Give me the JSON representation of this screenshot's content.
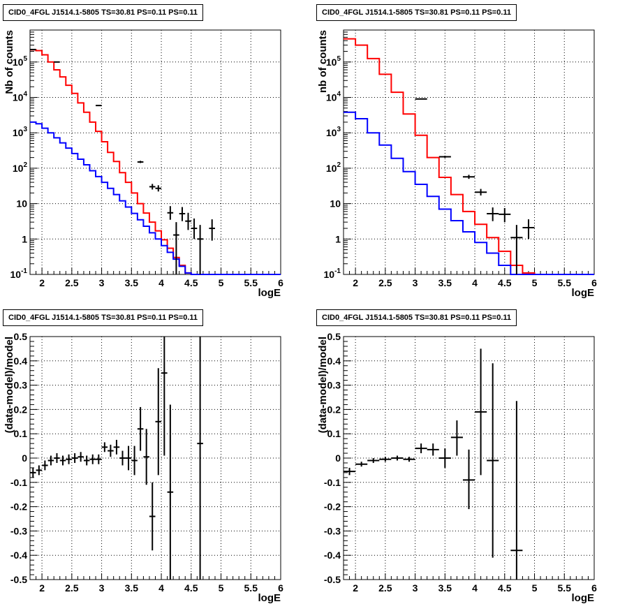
{
  "chart_data": [
    {
      "type": "line",
      "title": "CID0_4FGL J1514.1-5805 TS=30.81 PS=0.11 PS=0.11",
      "xlabel": "logE",
      "ylabel": "Nb of counts",
      "xlim": [
        1.8,
        6
      ],
      "ylim": [
        0.1,
        800000
      ],
      "yscale": "log",
      "grid": true,
      "x_ticks": [
        "2",
        "2.5",
        "3",
        "3.5",
        "4",
        "4.5",
        "5",
        "5.5",
        "6"
      ],
      "y_ticks": [
        {
          "v": 0.1,
          "base": "10",
          "exp": "-1"
        },
        {
          "v": 1,
          "text": "1"
        },
        {
          "v": 10,
          "text": "10"
        },
        {
          "v": 100,
          "base": "10",
          "exp": "2"
        },
        {
          "v": 1000,
          "base": "10",
          "exp": "3"
        },
        {
          "v": 10000,
          "base": "10",
          "exp": "4"
        },
        {
          "v": 100000,
          "base": "10",
          "exp": "5"
        }
      ],
      "bin_edges": [
        1.8,
        1.9,
        2.0,
        2.1,
        2.2,
        2.3,
        2.4,
        2.5,
        2.6,
        2.7,
        2.8,
        2.9,
        3.0,
        3.1,
        3.2,
        3.3,
        3.4,
        3.5,
        3.6,
        3.7,
        3.8,
        3.9,
        4.0,
        4.1,
        4.2,
        4.3,
        4.4,
        4.5,
        4.6,
        4.7,
        4.8,
        4.9,
        5.0,
        5.1,
        5.2,
        5.3,
        5.4,
        5.5,
        5.6,
        5.7,
        5.8,
        5.9,
        6.0
      ],
      "series": [
        {
          "color": "#ff0000",
          "style": "step",
          "values": [
            220000,
            210000,
            160000,
            100000,
            60000,
            38000,
            22000,
            13000,
            7000,
            3800,
            2000,
            1100,
            560,
            280,
            155,
            75,
            40,
            20,
            10,
            5.4,
            3.0,
            1.7,
            0.95,
            0.55,
            0.3,
            0.18,
            0.11,
            0.1,
            0.1,
            0.1,
            0.1,
            0.1,
            0.1,
            0.1,
            0.1,
            0.1,
            0.1,
            0.1,
            0.1,
            0.1,
            0.1,
            0.1
          ]
        },
        {
          "color": "#0000ff",
          "style": "step",
          "values": [
            2000,
            1800,
            1350,
            1000,
            720,
            520,
            370,
            260,
            180,
            125,
            85,
            58,
            40,
            27,
            18,
            12,
            8,
            5.3,
            3.5,
            2.3,
            1.5,
            1.0,
            0.65,
            0.42,
            0.27,
            0.17,
            0.11,
            0.1,
            0.1,
            0.1,
            0.1,
            0.1,
            0.1,
            0.1,
            0.1,
            0.1,
            0.1,
            0.1,
            0.1,
            0.1,
            0.1,
            0.1
          ]
        },
        {
          "color": "#000000",
          "style": "errorbar",
          "points": [
            {
              "x": 1.85,
              "y": 225000,
              "xe": 0.05,
              "lo": 224000,
              "hi": 226000
            },
            {
              "x": 2.25,
              "y": 100000,
              "xe": 0.05,
              "lo": 99000,
              "hi": 101000
            },
            {
              "x": 2.95,
              "y": 5900,
              "xe": 0.05,
              "lo": 5800,
              "hi": 6000
            },
            {
              "x": 3.65,
              "y": 150,
              "xe": 0.05,
              "lo": 140,
              "hi": 162
            },
            {
              "x": 3.85,
              "y": 30,
              "xe": 0.05,
              "lo": 25,
              "hi": 36
            },
            {
              "x": 3.95,
              "y": 27,
              "xe": 0.05,
              "lo": 22,
              "hi": 33
            },
            {
              "x": 4.15,
              "y": 5.5,
              "xe": 0.05,
              "lo": 3.5,
              "hi": 8.5
            },
            {
              "x": 4.25,
              "y": 1.3,
              "xe": 0.05,
              "lo": 0.1,
              "hi": 3.0
            },
            {
              "x": 4.35,
              "y": 5.2,
              "xe": 0.05,
              "lo": 3.2,
              "hi": 8.0
            },
            {
              "x": 4.45,
              "y": 3.2,
              "xe": 0.05,
              "lo": 1.8,
              "hi": 5.5
            },
            {
              "x": 4.55,
              "y": 2.0,
              "xe": 0.05,
              "lo": 1.0,
              "hi": 3.8
            },
            {
              "x": 4.65,
              "y": 1.0,
              "xe": 0.05,
              "lo": 0.1,
              "hi": 2.5
            },
            {
              "x": 4.85,
              "y": 2.0,
              "xe": 0.05,
              "lo": 0.9,
              "hi": 3.6
            }
          ]
        }
      ]
    },
    {
      "type": "line",
      "title": "CID0_4FGL J1514.1-5805 TS=30.81 PS=0.11 PS=0.11",
      "xlabel": "logE",
      "ylabel": "nb of counts",
      "xlim": [
        1.8,
        6
      ],
      "ylim": [
        0.1,
        800000
      ],
      "yscale": "log",
      "grid": true,
      "x_ticks": [
        "2",
        "2.5",
        "3",
        "3.5",
        "4",
        "4.5",
        "5",
        "5.5",
        "6"
      ],
      "y_ticks": [
        {
          "v": 0.1,
          "base": "10",
          "exp": "-1"
        },
        {
          "v": 1,
          "text": "1"
        },
        {
          "v": 10,
          "text": "10"
        },
        {
          "v": 100,
          "base": "10",
          "exp": "2"
        },
        {
          "v": 1000,
          "base": "10",
          "exp": "3"
        },
        {
          "v": 10000,
          "base": "10",
          "exp": "4"
        },
        {
          "v": 100000,
          "base": "10",
          "exp": "5"
        }
      ],
      "bin_edges": [
        1.8,
        2.0,
        2.2,
        2.4,
        2.6,
        2.8,
        3.0,
        3.2,
        3.4,
        3.6,
        3.8,
        4.0,
        4.2,
        4.4,
        4.6,
        4.8,
        5.0,
        5.2,
        5.4,
        5.6,
        5.8,
        6.0
      ],
      "series": [
        {
          "color": "#ff0000",
          "style": "step",
          "values": [
            450000,
            300000,
            125000,
            45000,
            14000,
            3400,
            850,
            200,
            55,
            18,
            6,
            2.6,
            1.1,
            0.45,
            0.18,
            0.11,
            0.1,
            0.1,
            0.1,
            0.1,
            0.1
          ]
        },
        {
          "color": "#0000ff",
          "style": "step",
          "values": [
            3800,
            2500,
            1000,
            450,
            190,
            80,
            35,
            16,
            7,
            3.3,
            1.6,
            0.8,
            0.4,
            0.18,
            0.1,
            0.1,
            0.1,
            0.1,
            0.1,
            0.1,
            0.1
          ]
        },
        {
          "color": "#000000",
          "style": "errorbar",
          "points": [
            {
              "x": 3.1,
              "y": 9000,
              "xe": 0.1,
              "lo": 8800,
              "hi": 9200
            },
            {
              "x": 3.5,
              "y": 210,
              "xe": 0.1,
              "lo": 195,
              "hi": 225
            },
            {
              "x": 3.9,
              "y": 57,
              "xe": 0.1,
              "lo": 50,
              "hi": 65
            },
            {
              "x": 4.1,
              "y": 21,
              "xe": 0.1,
              "lo": 17,
              "hi": 26
            },
            {
              "x": 4.3,
              "y": 5.2,
              "xe": 0.1,
              "lo": 3.2,
              "hi": 7.8
            },
            {
              "x": 4.5,
              "y": 5.0,
              "xe": 0.1,
              "lo": 3.0,
              "hi": 7.5
            },
            {
              "x": 4.7,
              "y": 1.1,
              "xe": 0.1,
              "lo": 0.1,
              "hi": 2.5
            },
            {
              "x": 4.9,
              "y": 2.1,
              "xe": 0.1,
              "lo": 1.0,
              "hi": 3.6
            }
          ]
        }
      ]
    },
    {
      "type": "scatter",
      "title": "CID0_4FGL J1514.1-5805 TS=30.81 PS=0.11 PS=0.11",
      "xlabel": "logE",
      "ylabel": "(data-model)/model",
      "xlim": [
        1.8,
        6
      ],
      "ylim": [
        -0.5,
        0.5
      ],
      "yscale": "linear",
      "grid": true,
      "x_ticks": [
        "2",
        "2.5",
        "3",
        "3.5",
        "4",
        "4.5",
        "5",
        "5.5",
        "6"
      ],
      "y_ticks": [
        {
          "v": -0.5,
          "text": "-0.5"
        },
        {
          "v": -0.4,
          "text": "-0.4"
        },
        {
          "v": -0.3,
          "text": "-0.3"
        },
        {
          "v": -0.2,
          "text": "-0.2"
        },
        {
          "v": -0.1,
          "text": "-0.1"
        },
        {
          "v": 0,
          "text": "0"
        },
        {
          "v": 0.1,
          "text": "0.1"
        },
        {
          "v": 0.2,
          "text": "0.2"
        },
        {
          "v": 0.3,
          "text": "0.3"
        },
        {
          "v": 0.4,
          "text": "0.4"
        },
        {
          "v": 0.5,
          "text": "0.5"
        }
      ],
      "series": [
        {
          "color": "#000000",
          "style": "errorbar",
          "points": [
            {
              "x": 1.85,
              "y": -0.06,
              "xe": 0.05,
              "lo": -0.08,
              "hi": -0.04
            },
            {
              "x": 1.95,
              "y": -0.05,
              "xe": 0.05,
              "lo": -0.07,
              "hi": -0.03
            },
            {
              "x": 2.05,
              "y": -0.03,
              "xe": 0.05,
              "lo": -0.05,
              "hi": -0.01
            },
            {
              "x": 2.15,
              "y": -0.01,
              "xe": 0.05,
              "lo": -0.03,
              "hi": 0.01
            },
            {
              "x": 2.25,
              "y": 0.0,
              "xe": 0.05,
              "lo": -0.02,
              "hi": 0.02
            },
            {
              "x": 2.35,
              "y": -0.01,
              "xe": 0.05,
              "lo": -0.03,
              "hi": 0.01
            },
            {
              "x": 2.45,
              "y": -0.005,
              "xe": 0.05,
              "lo": -0.025,
              "hi": 0.015
            },
            {
              "x": 2.55,
              "y": 0.0,
              "xe": 0.05,
              "lo": -0.02,
              "hi": 0.02
            },
            {
              "x": 2.65,
              "y": 0.005,
              "xe": 0.05,
              "lo": -0.015,
              "hi": 0.025
            },
            {
              "x": 2.75,
              "y": -0.01,
              "xe": 0.05,
              "lo": -0.03,
              "hi": 0.01
            },
            {
              "x": 2.85,
              "y": -0.005,
              "xe": 0.05,
              "lo": -0.025,
              "hi": 0.015
            },
            {
              "x": 2.95,
              "y": -0.005,
              "xe": 0.05,
              "lo": -0.025,
              "hi": 0.015
            },
            {
              "x": 3.05,
              "y": 0.045,
              "xe": 0.05,
              "lo": 0.025,
              "hi": 0.065
            },
            {
              "x": 3.15,
              "y": 0.03,
              "xe": 0.05,
              "lo": 0.005,
              "hi": 0.055
            },
            {
              "x": 3.25,
              "y": 0.045,
              "xe": 0.05,
              "lo": 0.015,
              "hi": 0.075
            },
            {
              "x": 3.35,
              "y": 0.0,
              "xe": 0.05,
              "lo": -0.03,
              "hi": 0.03
            },
            {
              "x": 3.45,
              "y": 0.0,
              "xe": 0.05,
              "lo": -0.05,
              "hi": 0.05
            },
            {
              "x": 3.55,
              "y": -0.01,
              "xe": 0.05,
              "lo": -0.07,
              "hi": 0.05
            },
            {
              "x": 3.65,
              "y": 0.12,
              "xe": 0.05,
              "lo": 0.03,
              "hi": 0.21
            },
            {
              "x": 3.75,
              "y": 0.005,
              "xe": 0.05,
              "lo": -0.11,
              "hi": 0.12
            },
            {
              "x": 3.85,
              "y": -0.24,
              "xe": 0.05,
              "lo": -0.38,
              "hi": -0.1
            },
            {
              "x": 3.95,
              "y": 0.15,
              "xe": 0.05,
              "lo": -0.07,
              "hi": 0.37
            },
            {
              "x": 4.05,
              "y": 0.35,
              "xe": 0.05,
              "lo": 0.01,
              "hi": 0.5
            },
            {
              "x": 4.15,
              "y": -0.14,
              "xe": 0.05,
              "lo": -0.5,
              "hi": 0.22
            },
            {
              "x": 4.65,
              "y": 0.06,
              "xe": 0.05,
              "lo": -0.5,
              "hi": 0.5
            }
          ]
        }
      ]
    },
    {
      "type": "scatter",
      "title": "CID0_4FGL J1514.1-5805 TS=30.81 PS=0.11 PS=0.11",
      "xlabel": "logE",
      "ylabel": "(data-model)/model",
      "xlim": [
        1.8,
        6
      ],
      "ylim": [
        -0.5,
        0.5
      ],
      "yscale": "linear",
      "grid": true,
      "x_ticks": [
        "2",
        "2.5",
        "3",
        "3.5",
        "4",
        "4.5",
        "5",
        "5.5",
        "6"
      ],
      "y_ticks": [
        {
          "v": -0.5,
          "text": "-0.5"
        },
        {
          "v": -0.4,
          "text": "-0.4"
        },
        {
          "v": -0.3,
          "text": "-0.3"
        },
        {
          "v": -0.2,
          "text": "-0.2"
        },
        {
          "v": -0.1,
          "text": "-0.1"
        },
        {
          "v": 0,
          "text": "0"
        },
        {
          "v": 0.1,
          "text": "0.1"
        },
        {
          "v": 0.2,
          "text": "0.2"
        },
        {
          "v": 0.3,
          "text": "0.3"
        },
        {
          "v": 0.4,
          "text": "0.4"
        },
        {
          "v": 0.5,
          "text": "0.5"
        }
      ],
      "series": [
        {
          "color": "#000000",
          "style": "errorbar",
          "points": [
            {
              "x": 1.9,
              "y": -0.055,
              "xe": 0.1,
              "lo": -0.07,
              "hi": -0.04
            },
            {
              "x": 2.1,
              "y": -0.025,
              "xe": 0.1,
              "lo": -0.035,
              "hi": -0.015
            },
            {
              "x": 2.3,
              "y": -0.01,
              "xe": 0.1,
              "lo": -0.02,
              "hi": 0.0
            },
            {
              "x": 2.5,
              "y": -0.005,
              "xe": 0.1,
              "lo": -0.015,
              "hi": 0.005
            },
            {
              "x": 2.7,
              "y": 0.0,
              "xe": 0.1,
              "lo": -0.01,
              "hi": 0.01
            },
            {
              "x": 2.9,
              "y": -0.005,
              "xe": 0.1,
              "lo": -0.015,
              "hi": 0.005
            },
            {
              "x": 3.1,
              "y": 0.04,
              "xe": 0.1,
              "lo": 0.02,
              "hi": 0.06
            },
            {
              "x": 3.3,
              "y": 0.035,
              "xe": 0.1,
              "lo": 0.01,
              "hi": 0.06
            },
            {
              "x": 3.5,
              "y": 0.0,
              "xe": 0.1,
              "lo": -0.04,
              "hi": 0.04
            },
            {
              "x": 3.7,
              "y": 0.085,
              "xe": 0.1,
              "lo": 0.01,
              "hi": 0.155
            },
            {
              "x": 3.9,
              "y": -0.09,
              "xe": 0.1,
              "lo": -0.21,
              "hi": 0.035
            },
            {
              "x": 4.1,
              "y": 0.19,
              "xe": 0.1,
              "lo": -0.07,
              "hi": 0.45
            },
            {
              "x": 4.3,
              "y": -0.01,
              "xe": 0.1,
              "lo": -0.41,
              "hi": 0.39
            },
            {
              "x": 4.7,
              "y": -0.38,
              "xe": 0.1,
              "lo": -0.5,
              "hi": 0.235
            }
          ]
        }
      ]
    }
  ]
}
